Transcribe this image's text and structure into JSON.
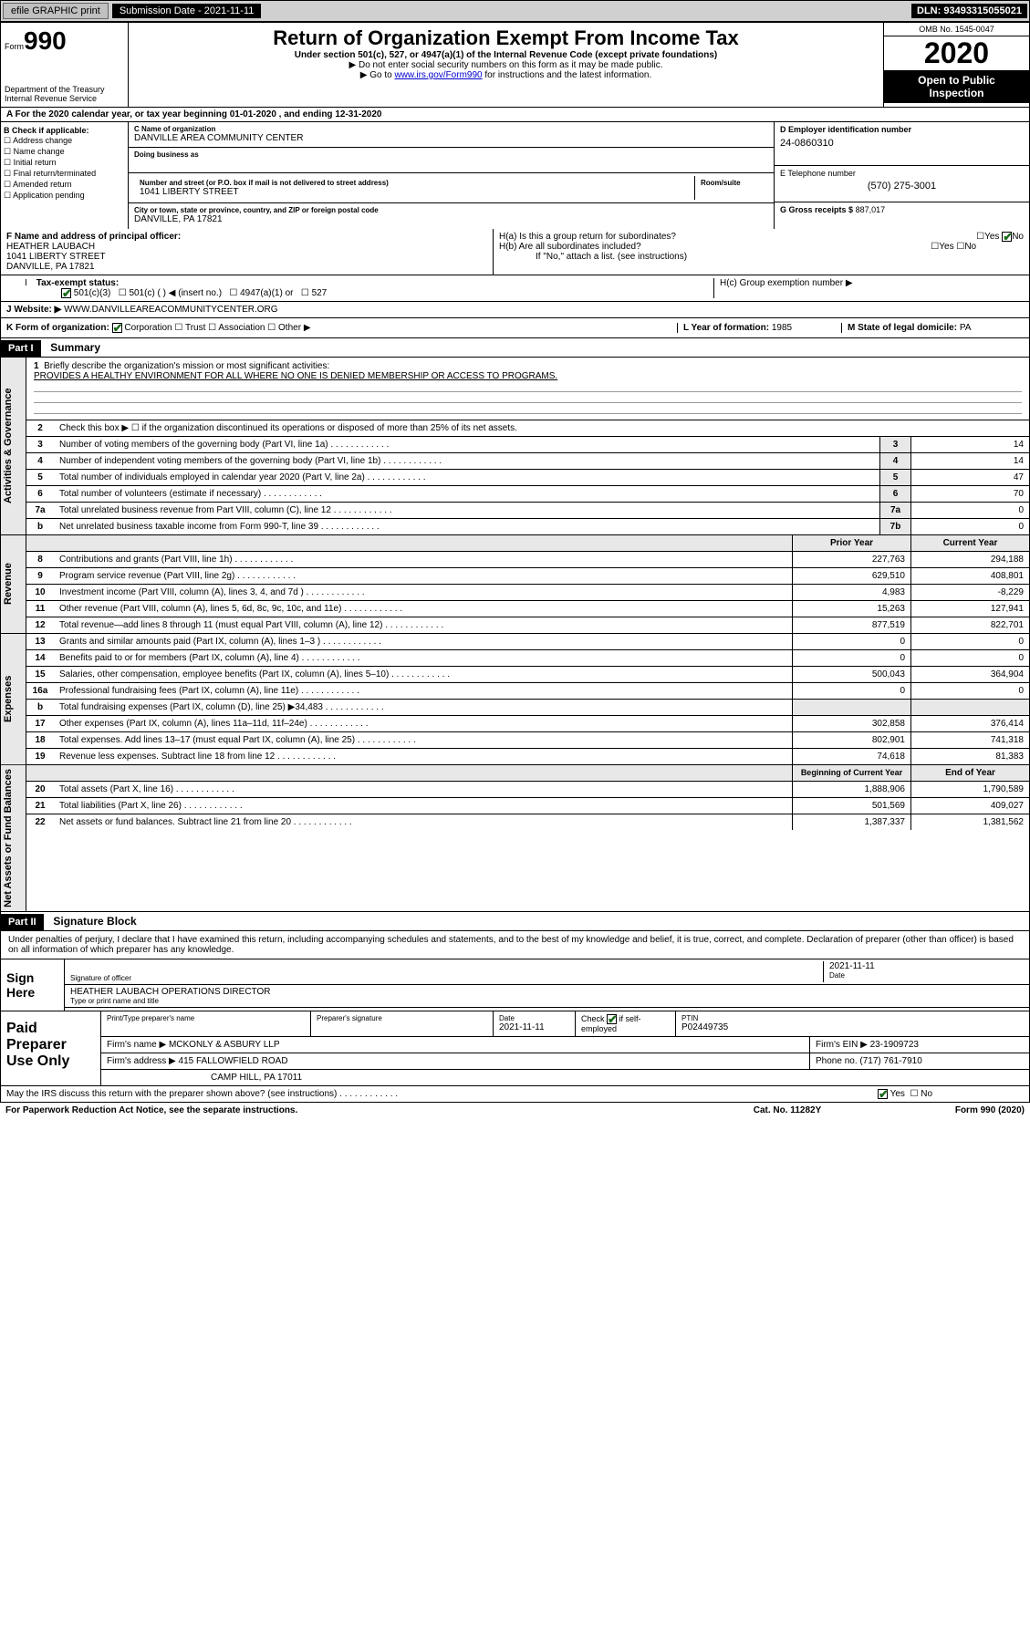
{
  "topbar": {
    "efile": "efile GRAPHIC print",
    "submission_label": "Submission Date -",
    "submission_date": "2021-11-11",
    "dln": "DLN: 93493315055021"
  },
  "header": {
    "form_prefix": "Form",
    "form_num": "990",
    "dept": "Department of the Treasury",
    "irs": "Internal Revenue Service",
    "title": "Return of Organization Exempt From Income Tax",
    "sub1": "Under section 501(c), 527, or 4947(a)(1) of the Internal Revenue Code (except private foundations)",
    "sub2": "▶ Do not enter social security numbers on this form as it may be made public.",
    "sub3_pre": "▶ Go to ",
    "sub3_link": "www.irs.gov/Form990",
    "sub3_post": " for instructions and the latest information.",
    "omb": "OMB No. 1545-0047",
    "year": "2020",
    "otp1": "Open to Public",
    "otp2": "Inspection"
  },
  "taxyear": "A For the 2020 calendar year, or tax year beginning 01-01-2020       , and ending 12-31-2020",
  "blockB": {
    "hdr": "B Check if applicable:",
    "opts": [
      "Address change",
      "Name change",
      "Initial return",
      "Final return/terminated",
      "Amended return",
      "Application pending"
    ]
  },
  "blockC": {
    "name_lbl": "C Name of organization",
    "name": "DANVILLE AREA COMMUNITY CENTER",
    "dba_lbl": "Doing business as",
    "addr_lbl": "Number and street (or P.O. box if mail is not delivered to street address)",
    "room_lbl": "Room/suite",
    "addr": "1041 LIBERTY STREET",
    "city_lbl": "City or town, state or province, country, and ZIP or foreign postal code",
    "city": "DANVILLE, PA   17821"
  },
  "blockD": {
    "ein_lbl": "D Employer identification number",
    "ein": "24-0860310",
    "tel_lbl": "E Telephone number",
    "tel": "(570) 275-3001",
    "gross_lbl": "G Gross receipts $",
    "gross": "887,017"
  },
  "blockF": {
    "lbl": "F Name and address of principal officer:",
    "name": "HEATHER LAUBACH",
    "addr1": "1041 LIBERTY STREET",
    "addr2": "DANVILLE, PA   17821"
  },
  "blockH": {
    "ha": "H(a)  Is this a group return for subordinates?",
    "hb": "H(b)  Are all subordinates included?",
    "hb_note": "If \"No,\" attach a list. (see instructions)",
    "hc": "H(c)  Group exemption number ▶",
    "yes": "Yes",
    "no": "No"
  },
  "taxexempt": {
    "lbl": "Tax-exempt status:",
    "o1": "501(c)(3)",
    "o2": "501(c) (   ) ◀ (insert no.)",
    "o3": "4947(a)(1) or",
    "o4": "527"
  },
  "website": {
    "lbl": "J   Website: ▶",
    "val": "WWW.DANVILLEAREACOMMUNITYCENTER.ORG"
  },
  "korg": {
    "lbl": "K Form of organization:",
    "o1": "Corporation",
    "o2": "Trust",
    "o3": "Association",
    "o4": "Other ▶",
    "yof_lbl": "L Year of formation:",
    "yof": "1985",
    "state_lbl": "M State of legal domicile:",
    "state": "PA"
  },
  "part1": {
    "hdr": "Part I",
    "title": "Summary",
    "q1": "Briefly describe the organization's mission or most significant activities:",
    "mission": "PROVIDES A HEALTHY ENVIRONMENT FOR ALL WHERE NO ONE IS DENIED MEMBERSHIP OR ACCESS TO PROGRAMS.",
    "q2": "Check this box ▶ ☐   if the organization discontinued its operations or disposed of more than 25% of its net assets.",
    "vtab1": "Activities & Governance",
    "vtab2": "Revenue",
    "vtab3": "Expenses",
    "vtab4": "Net Assets or Fund Balances",
    "rows_gov": [
      {
        "n": "3",
        "l": "Number of voting members of the governing body (Part VI, line 1a)",
        "ln": "3",
        "v": "14"
      },
      {
        "n": "4",
        "l": "Number of independent voting members of the governing body (Part VI, line 1b)",
        "ln": "4",
        "v": "14"
      },
      {
        "n": "5",
        "l": "Total number of individuals employed in calendar year 2020 (Part V, line 2a)",
        "ln": "5",
        "v": "47"
      },
      {
        "n": "6",
        "l": "Total number of volunteers (estimate if necessary)",
        "ln": "6",
        "v": "70"
      },
      {
        "n": "7a",
        "l": "Total unrelated business revenue from Part VIII, column (C), line 12",
        "ln": "7a",
        "v": "0"
      },
      {
        "n": "b",
        "l": "Net unrelated business taxable income from Form 990-T, line 39",
        "ln": "7b",
        "v": "0"
      }
    ],
    "col_hdr_prior": "Prior Year",
    "col_hdr_current": "Current Year",
    "rows_rev": [
      {
        "n": "8",
        "l": "Contributions and grants (Part VIII, line 1h)",
        "p": "227,763",
        "c": "294,188"
      },
      {
        "n": "9",
        "l": "Program service revenue (Part VIII, line 2g)",
        "p": "629,510",
        "c": "408,801"
      },
      {
        "n": "10",
        "l": "Investment income (Part VIII, column (A), lines 3, 4, and 7d )",
        "p": "4,983",
        "c": "-8,229"
      },
      {
        "n": "11",
        "l": "Other revenue (Part VIII, column (A), lines 5, 6d, 8c, 9c, 10c, and 11e)",
        "p": "15,263",
        "c": "127,941"
      },
      {
        "n": "12",
        "l": "Total revenue—add lines 8 through 11 (must equal Part VIII, column (A), line 12)",
        "p": "877,519",
        "c": "822,701"
      }
    ],
    "rows_exp": [
      {
        "n": "13",
        "l": "Grants and similar amounts paid (Part IX, column (A), lines 1–3 )",
        "p": "0",
        "c": "0"
      },
      {
        "n": "14",
        "l": "Benefits paid to or for members (Part IX, column (A), line 4)",
        "p": "0",
        "c": "0"
      },
      {
        "n": "15",
        "l": "Salaries, other compensation, employee benefits (Part IX, column (A), lines 5–10)",
        "p": "500,043",
        "c": "364,904"
      },
      {
        "n": "16a",
        "l": "Professional fundraising fees (Part IX, column (A), line 11e)",
        "p": "0",
        "c": "0"
      },
      {
        "n": "b",
        "l": "Total fundraising expenses (Part IX, column (D), line 25) ▶34,483",
        "p": "",
        "c": "",
        "gray": true
      },
      {
        "n": "17",
        "l": "Other expenses (Part IX, column (A), lines 11a–11d, 11f–24e)",
        "p": "302,858",
        "c": "376,414"
      },
      {
        "n": "18",
        "l": "Total expenses. Add lines 13–17 (must equal Part IX, column (A), line 25)",
        "p": "802,901",
        "c": "741,318"
      },
      {
        "n": "19",
        "l": "Revenue less expenses. Subtract line 18 from line 12",
        "p": "74,618",
        "c": "81,383"
      }
    ],
    "col_hdr_boy": "Beginning of Current Year",
    "col_hdr_eoy": "End of Year",
    "rows_net": [
      {
        "n": "20",
        "l": "Total assets (Part X, line 16)",
        "p": "1,888,906",
        "c": "1,790,589"
      },
      {
        "n": "21",
        "l": "Total liabilities (Part X, line 26)",
        "p": "501,569",
        "c": "409,027"
      },
      {
        "n": "22",
        "l": "Net assets or fund balances. Subtract line 21 from line 20",
        "p": "1,387,337",
        "c": "1,381,562"
      }
    ]
  },
  "part2": {
    "hdr": "Part II",
    "title": "Signature Block",
    "pen": "Under penalties of perjury, I declare that I have examined this return, including accompanying schedules and statements, and to the best of my knowledge and belief, it is true, correct, and complete. Declaration of preparer (other than officer) is based on all information of which preparer has any knowledge.",
    "sign_here": "Sign Here",
    "sig_off_lbl": "Signature of officer",
    "date_lbl": "Date",
    "sig_date": "2021-11-11",
    "officer": "HEATHER LAUBACH  OPERATIONS DIRECTOR",
    "type_lbl": "Type or print name and title"
  },
  "prep": {
    "lbl": "Paid Preparer Use Only",
    "print_lbl": "Print/Type preparer's name",
    "prepsig_lbl": "Preparer's signature",
    "date_lbl": "Date",
    "date": "2021-11-11",
    "check_lbl": "Check ☑  if self-employed",
    "ptin_lbl": "PTIN",
    "ptin": "P02449735",
    "firm_name_lbl": "Firm's name      ▶",
    "firm_name": "MCKONLY & ASBURY LLP",
    "firm_ein_lbl": "Firm's EIN ▶",
    "firm_ein": "23-1909723",
    "firm_addr_lbl": "Firm's address ▶",
    "firm_addr1": "415 FALLOWFIELD ROAD",
    "firm_addr2": "CAMP HILL, PA   17011",
    "phone_lbl": "Phone no.",
    "phone": "(717) 761-7910"
  },
  "discuss": {
    "q": "May the IRS discuss this return with the preparer shown above? (see instructions)",
    "yes": "Yes",
    "no": "No"
  },
  "footer": {
    "l": "For Paperwork Reduction Act Notice, see the separate instructions.",
    "c": "Cat. No. 11282Y",
    "r": "Form 990 (2020)"
  }
}
